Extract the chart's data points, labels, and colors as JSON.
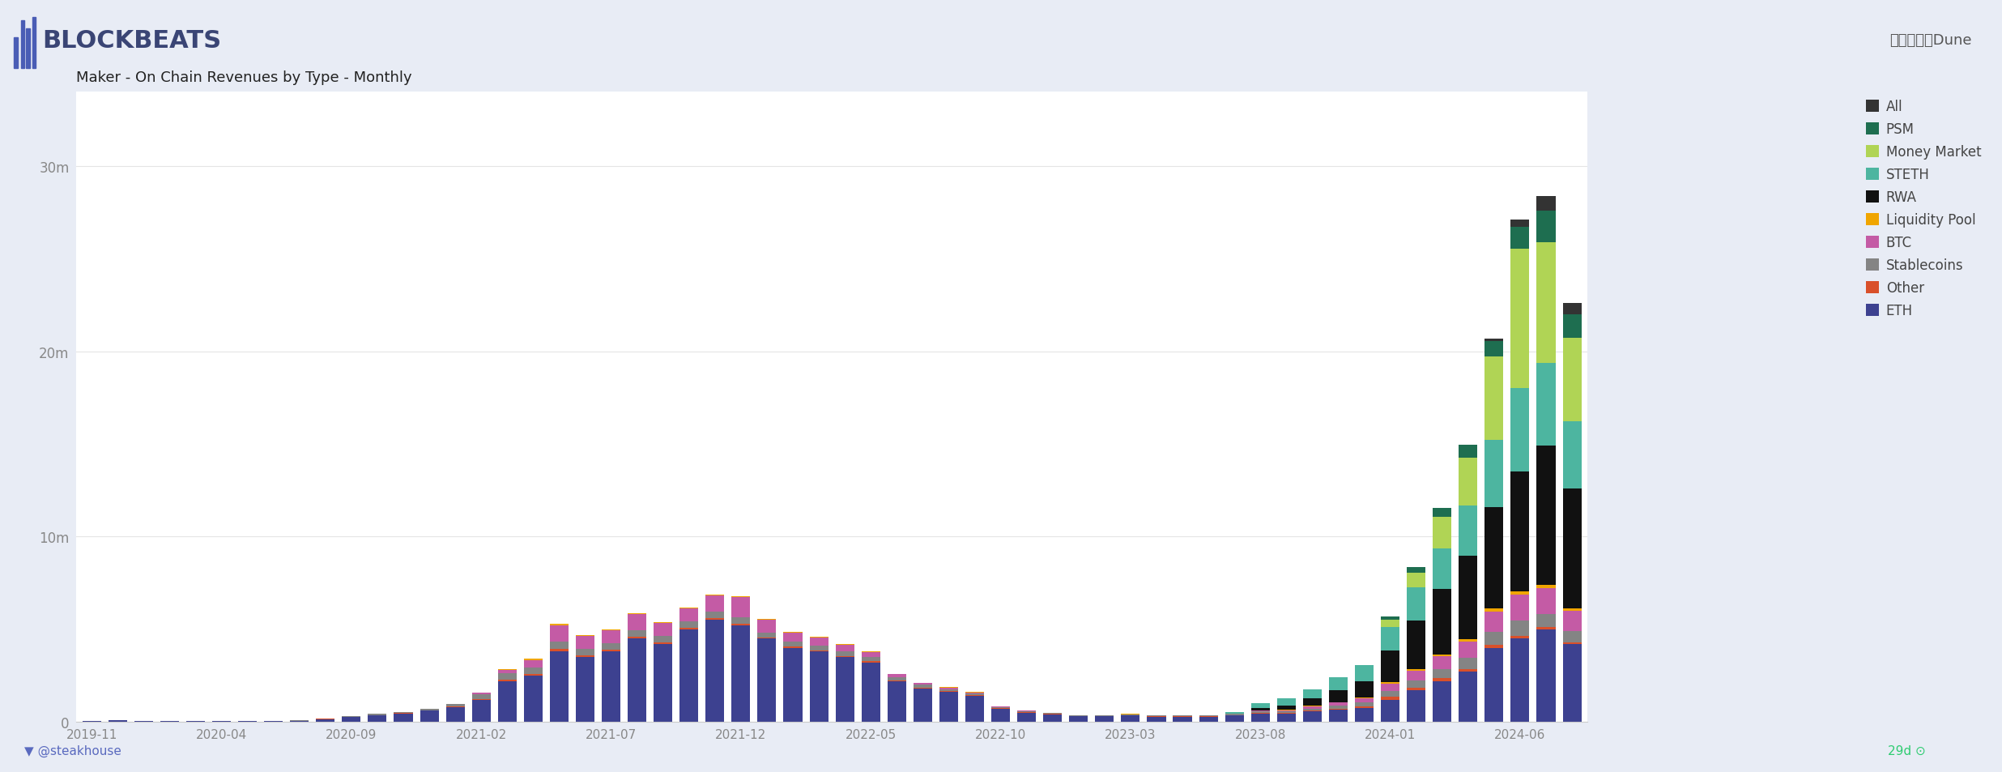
{
  "title": "Maker - On Chain Revenues by Type - Monthly",
  "source": "数据来源：Dune",
  "footer": "@steakhouse",
  "bg_color": "#e8ecf5",
  "plot_bg": "#ffffff",
  "ylim": [
    0,
    34000000
  ],
  "yticks": [
    0,
    10000000,
    20000000,
    30000000
  ],
  "ytick_labels": [
    "0",
    "10m",
    "20m",
    "30m"
  ],
  "categories": [
    "2019-11",
    "2019-12",
    "2020-01",
    "2020-02",
    "2020-03",
    "2020-04",
    "2020-05",
    "2020-06",
    "2020-07",
    "2020-08",
    "2020-09",
    "2020-10",
    "2020-11",
    "2020-12",
    "2021-01",
    "2021-02",
    "2021-03",
    "2021-04",
    "2021-05",
    "2021-06",
    "2021-07",
    "2021-08",
    "2021-09",
    "2021-10",
    "2021-11",
    "2021-12",
    "2022-01",
    "2022-02",
    "2022-03",
    "2022-04",
    "2022-05",
    "2022-06",
    "2022-07",
    "2022-08",
    "2022-09",
    "2022-10",
    "2022-11",
    "2022-12",
    "2023-01",
    "2023-02",
    "2023-03",
    "2023-04",
    "2023-05",
    "2023-06",
    "2023-07",
    "2023-08",
    "2023-09",
    "2023-10",
    "2023-11",
    "2023-12",
    "2024-01",
    "2024-02",
    "2024-03",
    "2024-04",
    "2024-05",
    "2024-06",
    "2024-07",
    "2024-08"
  ],
  "series": {
    "ETH": {
      "color": "#3d4190",
      "values": [
        50000,
        100000,
        30000,
        30000,
        30000,
        30000,
        30000,
        40000,
        60000,
        150000,
        250000,
        350000,
        450000,
        600000,
        800000,
        1200000,
        2200000,
        2500000,
        3800000,
        3500000,
        3800000,
        4500000,
        4200000,
        5000000,
        5500000,
        5200000,
        4500000,
        4000000,
        3800000,
        3500000,
        3200000,
        2200000,
        1800000,
        1600000,
        1400000,
        700000,
        500000,
        400000,
        300000,
        300000,
        350000,
        280000,
        280000,
        280000,
        350000,
        450000,
        450000,
        550000,
        650000,
        750000,
        1200000,
        1700000,
        2200000,
        2700000,
        4000000,
        4500000,
        5000000,
        4200000
      ]
    },
    "Other": {
      "color": "#d9502a",
      "values": [
        5000,
        5000,
        5000,
        5000,
        5000,
        5000,
        5000,
        5000,
        5000,
        5000,
        8000,
        10000,
        15000,
        15000,
        20000,
        40000,
        60000,
        80000,
        120000,
        80000,
        80000,
        80000,
        80000,
        80000,
        80000,
        80000,
        60000,
        60000,
        60000,
        60000,
        60000,
        40000,
        40000,
        40000,
        40000,
        25000,
        25000,
        20000,
        15000,
        15000,
        15000,
        15000,
        15000,
        15000,
        20000,
        30000,
        30000,
        50000,
        70000,
        80000,
        150000,
        150000,
        150000,
        150000,
        150000,
        150000,
        120000,
        80000
      ]
    },
    "Stablecoins": {
      "color": "#848484",
      "values": [
        3000,
        3000,
        3000,
        3000,
        3000,
        3000,
        3000,
        3000,
        5000,
        5000,
        30000,
        60000,
        80000,
        100000,
        150000,
        250000,
        350000,
        350000,
        400000,
        350000,
        350000,
        350000,
        350000,
        350000,
        350000,
        350000,
        250000,
        250000,
        250000,
        250000,
        250000,
        150000,
        150000,
        120000,
        80000,
        60000,
        50000,
        40000,
        40000,
        40000,
        40000,
        40000,
        40000,
        40000,
        60000,
        80000,
        80000,
        120000,
        160000,
        200000,
        300000,
        400000,
        500000,
        600000,
        700000,
        800000,
        700000,
        600000
      ]
    },
    "BTC": {
      "color": "#c45ba5",
      "values": [
        0,
        0,
        0,
        0,
        0,
        0,
        0,
        0,
        0,
        0,
        0,
        0,
        0,
        0,
        0,
        80000,
        180000,
        400000,
        900000,
        700000,
        700000,
        900000,
        700000,
        700000,
        900000,
        1100000,
        700000,
        500000,
        430000,
        350000,
        260000,
        180000,
        90000,
        90000,
        70000,
        40000,
        25000,
        18000,
        8000,
        8000,
        8000,
        8000,
        8000,
        8000,
        15000,
        35000,
        60000,
        120000,
        160000,
        250000,
        420000,
        520000,
        700000,
        900000,
        1100000,
        1400000,
        1400000,
        1100000
      ]
    },
    "Liquidity Pool": {
      "color": "#f0a500",
      "values": [
        0,
        0,
        0,
        0,
        0,
        0,
        0,
        0,
        0,
        0,
        0,
        0,
        0,
        0,
        0,
        0,
        40000,
        60000,
        80000,
        60000,
        50000,
        50000,
        40000,
        40000,
        40000,
        40000,
        40000,
        40000,
        40000,
        40000,
        40000,
        25000,
        25000,
        18000,
        15000,
        8000,
        8000,
        8000,
        8000,
        8000,
        8000,
        8000,
        8000,
        8000,
        8000,
        15000,
        15000,
        25000,
        30000,
        40000,
        60000,
        80000,
        100000,
        120000,
        150000,
        170000,
        170000,
        130000
      ]
    },
    "RWA": {
      "color": "#111111",
      "values": [
        0,
        0,
        0,
        0,
        0,
        0,
        0,
        0,
        0,
        0,
        0,
        0,
        0,
        0,
        0,
        0,
        0,
        0,
        0,
        0,
        0,
        0,
        0,
        0,
        0,
        0,
        0,
        0,
        0,
        0,
        0,
        0,
        0,
        0,
        0,
        0,
        0,
        0,
        0,
        0,
        0,
        0,
        0,
        0,
        0,
        150000,
        250000,
        400000,
        650000,
        850000,
        1700000,
        2600000,
        3500000,
        4500000,
        5500000,
        6500000,
        7500000,
        6500000
      ]
    },
    "STETH": {
      "color": "#4db5a0",
      "values": [
        0,
        0,
        0,
        0,
        0,
        0,
        0,
        0,
        0,
        0,
        0,
        0,
        0,
        0,
        0,
        0,
        0,
        0,
        0,
        0,
        0,
        0,
        0,
        0,
        0,
        0,
        0,
        0,
        0,
        0,
        0,
        0,
        0,
        0,
        0,
        0,
        0,
        0,
        0,
        0,
        0,
        0,
        0,
        0,
        80000,
        250000,
        400000,
        500000,
        700000,
        900000,
        1300000,
        1800000,
        2200000,
        2700000,
        3600000,
        4500000,
        4500000,
        3600000
      ]
    },
    "Money Market": {
      "color": "#b0d455",
      "values": [
        0,
        0,
        0,
        0,
        0,
        0,
        0,
        0,
        0,
        0,
        0,
        0,
        0,
        0,
        0,
        0,
        0,
        0,
        0,
        0,
        0,
        0,
        0,
        0,
        0,
        0,
        0,
        0,
        0,
        0,
        0,
        0,
        0,
        0,
        0,
        0,
        0,
        0,
        0,
        0,
        0,
        0,
        0,
        0,
        0,
        0,
        0,
        0,
        0,
        0,
        400000,
        800000,
        1700000,
        2600000,
        4500000,
        7500000,
        6500000,
        4500000
      ]
    },
    "PSM": {
      "color": "#1e6e50",
      "values": [
        0,
        0,
        0,
        0,
        0,
        0,
        0,
        0,
        0,
        0,
        0,
        0,
        0,
        0,
        0,
        0,
        0,
        0,
        0,
        0,
        0,
        0,
        0,
        0,
        0,
        0,
        0,
        0,
        0,
        0,
        0,
        0,
        0,
        0,
        0,
        0,
        0,
        0,
        0,
        0,
        0,
        0,
        0,
        0,
        0,
        0,
        0,
        0,
        0,
        0,
        150000,
        300000,
        500000,
        700000,
        850000,
        1200000,
        1700000,
        1300000
      ]
    },
    "All": {
      "color": "#333333",
      "values": [
        0,
        0,
        0,
        0,
        0,
        0,
        0,
        0,
        0,
        0,
        0,
        0,
        0,
        0,
        0,
        0,
        0,
        0,
        0,
        0,
        0,
        0,
        0,
        0,
        0,
        0,
        0,
        0,
        0,
        0,
        0,
        0,
        0,
        0,
        0,
        0,
        0,
        0,
        0,
        0,
        0,
        0,
        0,
        0,
        0,
        0,
        0,
        0,
        0,
        0,
        0,
        0,
        0,
        0,
        150000,
        400000,
        800000,
        600000
      ]
    }
  },
  "stack_order": [
    "ETH",
    "Other",
    "Stablecoins",
    "BTC",
    "Liquidity Pool",
    "RWA",
    "STETH",
    "Money Market",
    "PSM",
    "All"
  ],
  "legend_order": [
    "All",
    "PSM",
    "Money Market",
    "STETH",
    "RWA",
    "Liquidity Pool",
    "BTC",
    "Stablecoins",
    "Other",
    "ETH"
  ],
  "xtick_positions": [
    0,
    5,
    10,
    15,
    20,
    25,
    30,
    35,
    40,
    45,
    50,
    55
  ],
  "xtick_labels": [
    "2019-11",
    "2020-04",
    "2020-09",
    "2021-02",
    "2021-07",
    "2021-12",
    "2022-05",
    "2022-10",
    "2023-03",
    "2023-08",
    "2024-01",
    "2024-06"
  ]
}
